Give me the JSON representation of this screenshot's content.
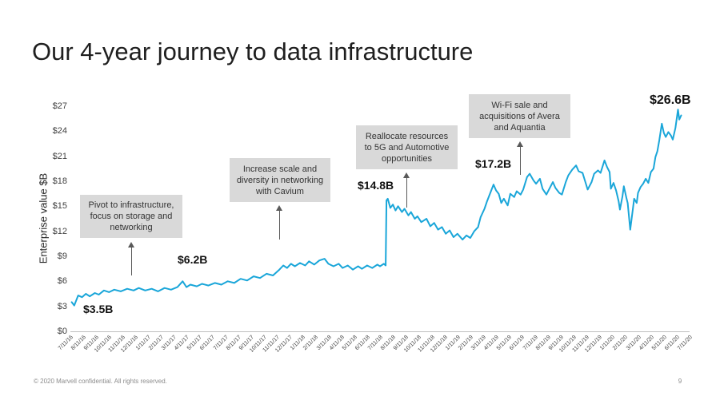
{
  "slide": {
    "title": "Our 4-year journey to data infrastructure",
    "footer": "© 2020 Marvell confidential. All rights reserved.",
    "page_number": "9"
  },
  "chart_data": {
    "type": "line",
    "title": "",
    "xlabel": "",
    "ylabel": "Enterprise value $B",
    "ylim": [
      0,
      27
    ],
    "x_range_months": [
      0,
      48
    ],
    "grid": false,
    "legend": "none",
    "line_color": "#1aa6d9",
    "axis_color": "#bfbfbf",
    "ytick_labels": [
      "$0",
      "$3",
      "$6",
      "$9",
      "$12",
      "$15",
      "$18",
      "$21",
      "$24",
      "$27"
    ],
    "xtick_labels": [
      "7/11/16",
      "8/11/16",
      "9/11/16",
      "10/11/16",
      "11/11/16",
      "12/11/16",
      "1/11/17",
      "2/11/17",
      "3/11/17",
      "4/11/17",
      "5/11/17",
      "6/11/17",
      "7/11/17",
      "8/11/17",
      "9/11/17",
      "10/11/17",
      "11/11/17",
      "12/11/17",
      "1/11/18",
      "2/11/18",
      "3/11/18",
      "4/11/18",
      "5/11/18",
      "6/11/18",
      "7/11/18",
      "8/11/18",
      "9/11/18",
      "10/11/18",
      "11/11/18",
      "12/11/18",
      "1/11/19",
      "2/11/19",
      "3/11/19",
      "4/11/19",
      "5/11/19",
      "6/11/19",
      "7/11/19",
      "8/11/19",
      "9/11/19",
      "10/11/19",
      "11/11/19",
      "12/11/19",
      "1/11/20",
      "2/11/20",
      "3/11/20",
      "4/11/20",
      "5/11/20",
      "6/11/20",
      "7/11/20"
    ],
    "series": [
      {
        "name": "Enterprise value ($B)",
        "points": [
          [
            0.1,
            3.5
          ],
          [
            0.3,
            3.1
          ],
          [
            0.6,
            4.3
          ],
          [
            0.9,
            4.1
          ],
          [
            1.2,
            4.5
          ],
          [
            1.5,
            4.2
          ],
          [
            1.9,
            4.6
          ],
          [
            2.2,
            4.4
          ],
          [
            2.6,
            4.9
          ],
          [
            3.0,
            4.7
          ],
          [
            3.4,
            5.0
          ],
          [
            3.9,
            4.8
          ],
          [
            4.4,
            5.1
          ],
          [
            4.9,
            4.9
          ],
          [
            5.3,
            5.2
          ],
          [
            5.8,
            4.9
          ],
          [
            6.3,
            5.1
          ],
          [
            6.8,
            4.8
          ],
          [
            7.3,
            5.2
          ],
          [
            7.8,
            5.0
          ],
          [
            8.3,
            5.3
          ],
          [
            8.7,
            6.0
          ],
          [
            9.0,
            5.3
          ],
          [
            9.3,
            5.6
          ],
          [
            9.8,
            5.4
          ],
          [
            10.2,
            5.7
          ],
          [
            10.7,
            5.5
          ],
          [
            11.2,
            5.8
          ],
          [
            11.7,
            5.6
          ],
          [
            12.2,
            6.0
          ],
          [
            12.7,
            5.8
          ],
          [
            13.2,
            6.3
          ],
          [
            13.7,
            6.1
          ],
          [
            14.2,
            6.6
          ],
          [
            14.7,
            6.4
          ],
          [
            15.2,
            6.9
          ],
          [
            15.7,
            6.7
          ],
          [
            16.2,
            7.4
          ],
          [
            16.5,
            7.9
          ],
          [
            16.8,
            7.6
          ],
          [
            17.1,
            8.1
          ],
          [
            17.4,
            7.8
          ],
          [
            17.8,
            8.2
          ],
          [
            18.2,
            7.9
          ],
          [
            18.5,
            8.4
          ],
          [
            18.9,
            8.0
          ],
          [
            19.3,
            8.5
          ],
          [
            19.7,
            8.7
          ],
          [
            20.0,
            8.1
          ],
          [
            20.4,
            7.8
          ],
          [
            20.8,
            8.1
          ],
          [
            21.1,
            7.6
          ],
          [
            21.5,
            7.9
          ],
          [
            21.9,
            7.4
          ],
          [
            22.3,
            7.8
          ],
          [
            22.6,
            7.5
          ],
          [
            23.0,
            7.9
          ],
          [
            23.4,
            7.6
          ],
          [
            23.8,
            8.0
          ],
          [
            24.0,
            7.8
          ],
          [
            24.3,
            8.1
          ],
          [
            24.44,
            7.9
          ],
          [
            24.5,
            15.7
          ],
          [
            24.6,
            15.9
          ],
          [
            24.8,
            14.8
          ],
          [
            25.0,
            15.2
          ],
          [
            25.2,
            14.5
          ],
          [
            25.4,
            15.0
          ],
          [
            25.7,
            14.3
          ],
          [
            25.9,
            14.7
          ],
          [
            26.2,
            13.9
          ],
          [
            26.4,
            14.3
          ],
          [
            26.7,
            13.5
          ],
          [
            26.9,
            13.8
          ],
          [
            27.2,
            13.1
          ],
          [
            27.6,
            13.5
          ],
          [
            27.9,
            12.6
          ],
          [
            28.2,
            13.0
          ],
          [
            28.5,
            12.2
          ],
          [
            28.8,
            12.5
          ],
          [
            29.1,
            11.7
          ],
          [
            29.4,
            12.1
          ],
          [
            29.7,
            11.3
          ],
          [
            30.0,
            11.7
          ],
          [
            30.4,
            11.0
          ],
          [
            30.7,
            11.5
          ],
          [
            31.0,
            11.2
          ],
          [
            31.3,
            12.0
          ],
          [
            31.6,
            12.5
          ],
          [
            31.8,
            13.7
          ],
          [
            32.1,
            14.7
          ],
          [
            32.3,
            15.6
          ],
          [
            32.6,
            16.8
          ],
          [
            32.8,
            17.6
          ],
          [
            33.0,
            16.9
          ],
          [
            33.2,
            16.5
          ],
          [
            33.4,
            15.4
          ],
          [
            33.6,
            15.9
          ],
          [
            33.9,
            15.1
          ],
          [
            34.1,
            16.5
          ],
          [
            34.4,
            16.1
          ],
          [
            34.6,
            16.8
          ],
          [
            34.9,
            16.4
          ],
          [
            35.1,
            17.0
          ],
          [
            35.4,
            18.5
          ],
          [
            35.6,
            18.9
          ],
          [
            35.9,
            18.1
          ],
          [
            36.1,
            17.7
          ],
          [
            36.4,
            18.3
          ],
          [
            36.6,
            17.1
          ],
          [
            36.9,
            16.4
          ],
          [
            37.1,
            17.0
          ],
          [
            37.4,
            17.9
          ],
          [
            37.6,
            17.2
          ],
          [
            37.9,
            16.6
          ],
          [
            38.1,
            16.4
          ],
          [
            38.4,
            17.9
          ],
          [
            38.6,
            18.7
          ],
          [
            38.9,
            19.4
          ],
          [
            39.2,
            19.9
          ],
          [
            39.4,
            19.2
          ],
          [
            39.7,
            19.0
          ],
          [
            39.9,
            18.0
          ],
          [
            40.1,
            17.0
          ],
          [
            40.4,
            17.9
          ],
          [
            40.6,
            18.9
          ],
          [
            40.9,
            19.3
          ],
          [
            41.1,
            19.0
          ],
          [
            41.4,
            20.5
          ],
          [
            41.6,
            19.7
          ],
          [
            41.8,
            19.1
          ],
          [
            41.9,
            17.1
          ],
          [
            42.1,
            17.8
          ],
          [
            42.3,
            16.9
          ],
          [
            42.5,
            15.6
          ],
          [
            42.6,
            14.6
          ],
          [
            42.8,
            16.2
          ],
          [
            42.9,
            17.4
          ],
          [
            43.1,
            16.0
          ],
          [
            43.2,
            15.4
          ],
          [
            43.4,
            12.2
          ],
          [
            43.6,
            14.6
          ],
          [
            43.7,
            15.9
          ],
          [
            43.9,
            15.4
          ],
          [
            44.0,
            16.6
          ],
          [
            44.2,
            17.3
          ],
          [
            44.4,
            17.7
          ],
          [
            44.6,
            18.3
          ],
          [
            44.8,
            17.8
          ],
          [
            45.0,
            19.1
          ],
          [
            45.2,
            19.5
          ],
          [
            45.35,
            20.9
          ],
          [
            45.5,
            21.6
          ],
          [
            45.65,
            22.9
          ],
          [
            45.85,
            24.9
          ],
          [
            46.0,
            23.8
          ],
          [
            46.15,
            23.3
          ],
          [
            46.35,
            23.9
          ],
          [
            46.55,
            23.5
          ],
          [
            46.7,
            23.0
          ],
          [
            46.9,
            24.4
          ],
          [
            47.1,
            26.6
          ],
          [
            47.2,
            25.4
          ],
          [
            47.35,
            25.9
          ]
        ]
      }
    ],
    "annotations": {
      "value_labels": [
        {
          "text": "$3.5B"
        },
        {
          "text": "$6.2B"
        },
        {
          "text": "$14.8B"
        },
        {
          "text": "$17.2B"
        },
        {
          "text": "$26.6B"
        }
      ],
      "callouts": [
        {
          "text": "Pivot to infrastructure, focus on storage and networking"
        },
        {
          "text": "Increase scale and diversity in networking with Cavium"
        },
        {
          "text": "Reallocate resources to 5G and Automotive opportunities"
        },
        {
          "text": "Wi-Fi sale and acquisitions of Avera and Aquantia"
        }
      ]
    }
  }
}
